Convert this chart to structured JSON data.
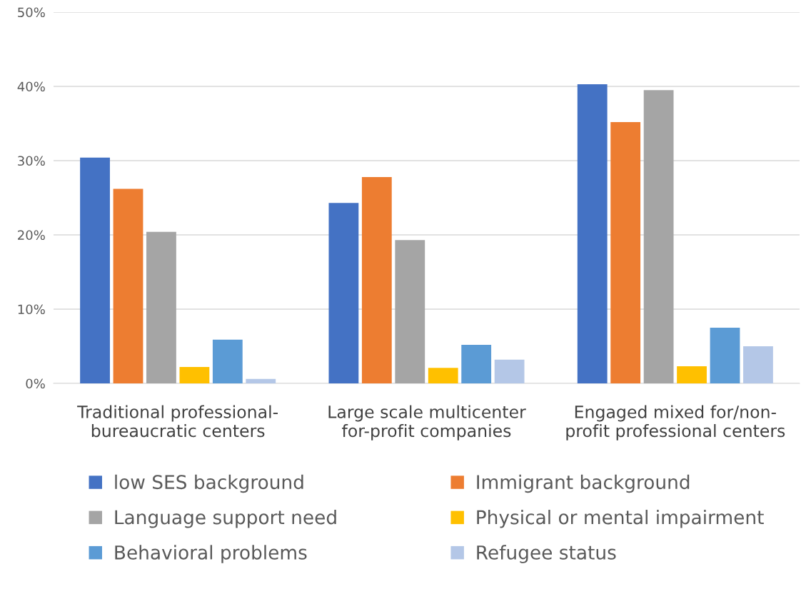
{
  "chart_data": {
    "type": "bar",
    "categories": [
      "Traditional professional-\nbureaucratic centers",
      "Large scale multicenter\nfor-profit companies",
      "Engaged mixed for/non-\nprofit professional centers"
    ],
    "series": [
      {
        "name": "low SES background",
        "color": "#4472c4",
        "values": [
          30.4,
          24.3,
          40.3
        ]
      },
      {
        "name": "Immigrant background",
        "color": "#ed7d31",
        "values": [
          26.2,
          27.8,
          35.2
        ]
      },
      {
        "name": "Language support need",
        "color": "#a5a5a5",
        "values": [
          20.4,
          19.3,
          39.5
        ]
      },
      {
        "name": "Physical or mental impairment",
        "color": "#ffc000",
        "values": [
          2.2,
          2.1,
          2.3
        ]
      },
      {
        "name": "Behavioral problems",
        "color": "#5b9bd5",
        "values": [
          5.9,
          5.2,
          7.5
        ]
      },
      {
        "name": "Refugee status",
        "color": "#b4c7e7",
        "values": [
          0.6,
          3.2,
          5.0
        ]
      }
    ],
    "ylim": [
      0,
      50
    ],
    "yticks": [
      {
        "value": 0,
        "label": "0%"
      },
      {
        "value": 10,
        "label": "10%"
      },
      {
        "value": 20,
        "label": "20%"
      },
      {
        "value": 30,
        "label": "30%"
      },
      {
        "value": 40,
        "label": "40%"
      },
      {
        "value": 50,
        "label": "50%"
      }
    ],
    "grid": "y",
    "legend": "bottom"
  }
}
